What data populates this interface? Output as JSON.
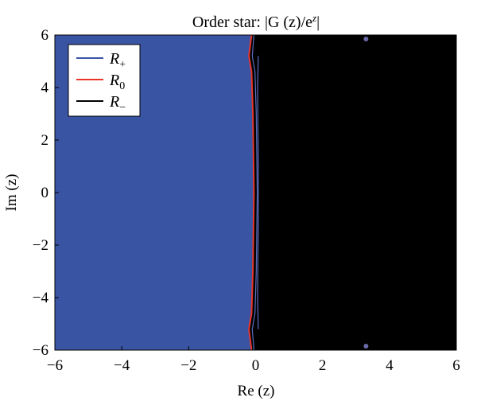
{
  "chart_data": {
    "type": "contour",
    "title_plain": "Order star: |G (z)/e",
    "title_sup": "z",
    "title_close": "|",
    "xlabel": "Re (z)",
    "ylabel": "Im (z)",
    "xlim": [
      -6,
      6
    ],
    "ylim": [
      -6,
      6
    ],
    "xticks": [
      -6,
      -4,
      -2,
      0,
      2,
      4,
      6
    ],
    "yticks": [
      -6,
      -4,
      -2,
      0,
      2,
      4,
      6
    ],
    "xtick_labels": [
      "−6",
      "−4",
      "−2",
      "0",
      "2",
      "4",
      "6"
    ],
    "ytick_labels": [
      "−6",
      "−4",
      "−2",
      "0",
      "2",
      "4",
      "6"
    ],
    "grid": false,
    "legend_position": "top-left",
    "regions": [
      {
        "name": "R+",
        "color": "#3a54a4",
        "side": "left of boundary"
      },
      {
        "name": "R−",
        "color": "#000000",
        "side": "right of boundary"
      }
    ],
    "boundary_curve": {
      "name": "R0",
      "color": "#e8362a",
      "points": [
        [
          -0.12,
          6
        ],
        [
          -0.2,
          5.2
        ],
        [
          -0.12,
          4.6
        ],
        [
          -0.08,
          3
        ],
        [
          -0.05,
          0
        ],
        [
          -0.08,
          -3
        ],
        [
          -0.12,
          -4.6
        ],
        [
          -0.2,
          -5.2
        ],
        [
          -0.12,
          -6
        ]
      ]
    },
    "blue_contours": [
      [
        [
          -0.05,
          6
        ],
        [
          -0.1,
          5.2
        ],
        [
          -0.02,
          4.6
        ],
        [
          0.02,
          3
        ],
        [
          0.05,
          0
        ],
        [
          0.02,
          -3
        ],
        [
          -0.02,
          -4.6
        ],
        [
          -0.1,
          -5.2
        ],
        [
          -0.05,
          -6
        ]
      ],
      [
        [
          0.08,
          5.2
        ],
        [
          0.06,
          4
        ],
        [
          0.08,
          1
        ],
        [
          0.08,
          -1
        ],
        [
          0.06,
          -4
        ],
        [
          0.08,
          -5.2
        ]
      ]
    ],
    "points": [
      {
        "x": 3.3,
        "y": 5.85,
        "color": "#6a6aa8"
      },
      {
        "x": 3.3,
        "y": -5.85,
        "color": "#6a6aa8"
      }
    ],
    "legend": [
      {
        "label_main": "R",
        "label_sub": "+",
        "color": "#3a54a4"
      },
      {
        "label_main": "R",
        "label_sub": "0",
        "color": "#e8362a"
      },
      {
        "label_main": "R",
        "label_sub": "−",
        "color": "#000000"
      }
    ]
  }
}
